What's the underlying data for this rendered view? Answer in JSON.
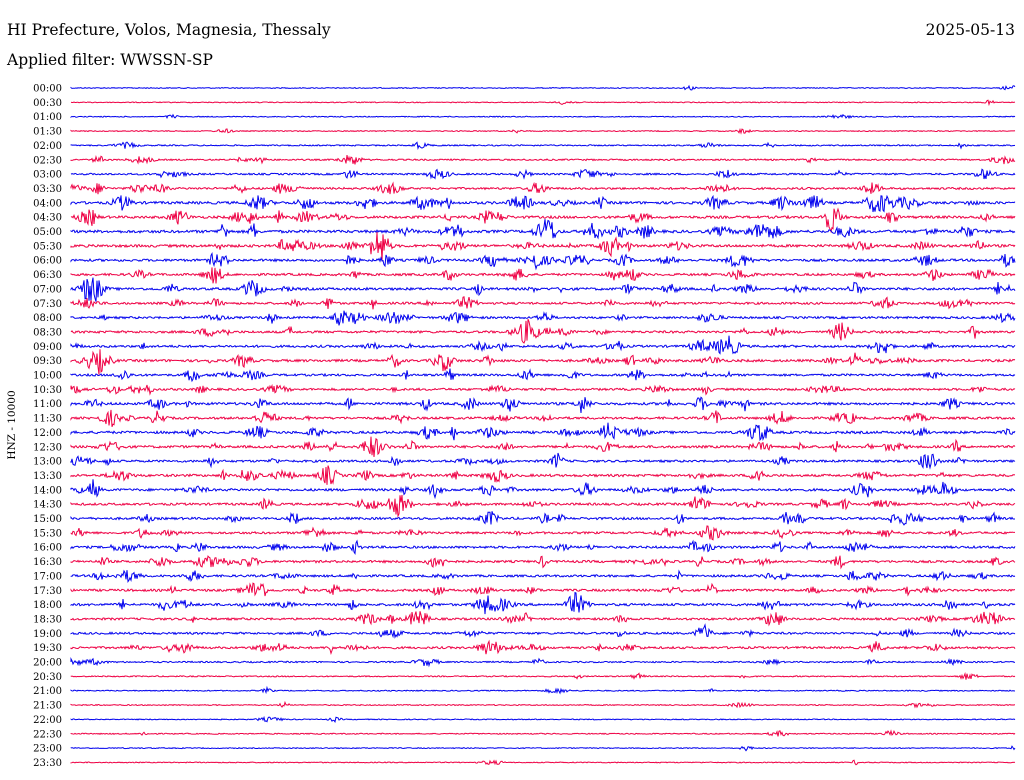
{
  "header": {
    "title": "HI Prefecture, Volos, Magnesia, Thessaly",
    "date": "2025-05-13",
    "filter": "Applied filter: WWSSN-SP"
  },
  "colors": {
    "even_hour": "#0000ee",
    "half_hour": "#ee0044"
  },
  "chart_data": {
    "type": "line",
    "title": "HI Prefecture, Volos, Magnesia, Thessaly",
    "xlabel": "",
    "ylabel": "HNZ - 10000",
    "grid": false,
    "legend": "none",
    "rows": [
      {
        "label": "00:00",
        "activity": 0.1
      },
      {
        "label": "00:30",
        "activity": 0.08
      },
      {
        "label": "01:00",
        "activity": 0.1
      },
      {
        "label": "01:30",
        "activity": 0.12
      },
      {
        "label": "02:00",
        "activity": 0.25
      },
      {
        "label": "02:30",
        "activity": 0.35
      },
      {
        "label": "03:00",
        "activity": 0.45
      },
      {
        "label": "03:30",
        "activity": 0.6
      },
      {
        "label": "04:00",
        "activity": 0.85
      },
      {
        "label": "04:30",
        "activity": 0.8
      },
      {
        "label": "05:00",
        "activity": 0.9
      },
      {
        "label": "05:30",
        "activity": 0.85
      },
      {
        "label": "06:00",
        "activity": 0.75
      },
      {
        "label": "06:30",
        "activity": 0.7
      },
      {
        "label": "07:00",
        "activity": 0.8
      },
      {
        "label": "07:30",
        "activity": 0.65
      },
      {
        "label": "08:00",
        "activity": 0.65
      },
      {
        "label": "08:30",
        "activity": 0.7
      },
      {
        "label": "09:00",
        "activity": 0.7
      },
      {
        "label": "09:30",
        "activity": 0.75
      },
      {
        "label": "10:00",
        "activity": 0.65
      },
      {
        "label": "10:30",
        "activity": 0.65
      },
      {
        "label": "11:00",
        "activity": 0.8
      },
      {
        "label": "11:30",
        "activity": 0.7
      },
      {
        "label": "12:00",
        "activity": 0.8
      },
      {
        "label": "12:30",
        "activity": 0.75
      },
      {
        "label": "13:00",
        "activity": 0.65
      },
      {
        "label": "13:30",
        "activity": 0.75
      },
      {
        "label": "14:00",
        "activity": 0.75
      },
      {
        "label": "14:30",
        "activity": 0.7
      },
      {
        "label": "15:00",
        "activity": 0.7
      },
      {
        "label": "15:30",
        "activity": 0.65
      },
      {
        "label": "16:00",
        "activity": 0.7
      },
      {
        "label": "16:30",
        "activity": 0.7
      },
      {
        "label": "17:00",
        "activity": 0.65
      },
      {
        "label": "17:30",
        "activity": 0.7
      },
      {
        "label": "18:00",
        "activity": 0.75
      },
      {
        "label": "18:30",
        "activity": 0.65
      },
      {
        "label": "19:00",
        "activity": 0.6
      },
      {
        "label": "19:30",
        "activity": 0.65
      },
      {
        "label": "20:00",
        "activity": 0.3
      },
      {
        "label": "20:30",
        "activity": 0.2
      },
      {
        "label": "21:00",
        "activity": 0.15
      },
      {
        "label": "21:30",
        "activity": 0.15
      },
      {
        "label": "22:00",
        "activity": 0.1
      },
      {
        "label": "22:30",
        "activity": 0.15
      },
      {
        "label": "23:00",
        "activity": 0.1
      },
      {
        "label": "23:30",
        "activity": 0.1
      }
    ]
  }
}
